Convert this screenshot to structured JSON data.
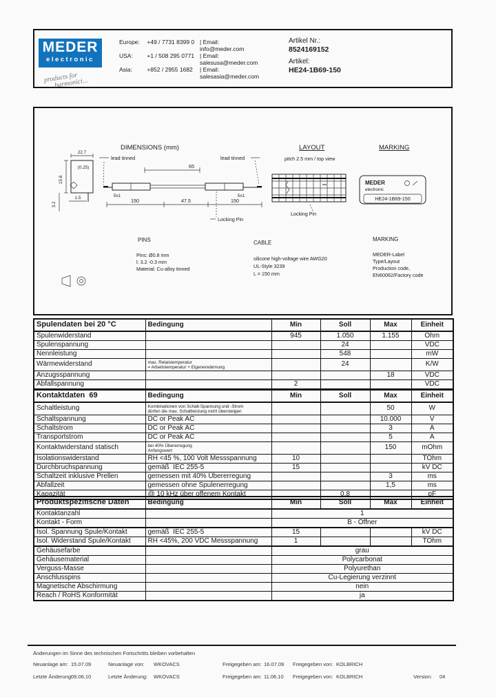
{
  "header": {
    "logo": {
      "line1": "MEDER",
      "line2": "electronic",
      "script1": "products for",
      "script2": "harmonici..."
    },
    "contacts": [
      {
        "region": "Europe:",
        "phone": "+49 / 7731 8399 0",
        "email": "| Email: info@meder.com"
      },
      {
        "region": "USA:",
        "phone": "+1 / 508 295 0771",
        "email": "| Email: salesusa@meder.com"
      },
      {
        "region": "Asia:",
        "phone": "+852 / 2955 1682",
        "email": "| Email: salesasia@meder.com"
      }
    ],
    "article_no_label": "Artikel Nr.:",
    "article_no": "8524169152",
    "article_label": "Artikel:",
    "article": "HE24-1B69-150"
  },
  "drawing": {
    "dims_title": "DIMENSIONS (mm)",
    "layout_title": "LAYOUT",
    "layout_sub": "pitch 2.5 mm / top view",
    "marking_title": "MARKING",
    "end_view": {
      "w": "22.7",
      "w2": "(0.25)",
      "h": "15.8",
      "pin": "3.2",
      "off": "1.5"
    },
    "side": {
      "lead_tinned_left": "lead tinned",
      "lead_tinned_right": "lead tinned",
      "len65": "65",
      "tol_left": "5±1",
      "tol_right": "5±1",
      "cable_left": "150",
      "body_mid": "47.5",
      "cable_right": "150",
      "locking_pin": "Locking Pin"
    },
    "layout_caption": "Locking Pin",
    "label": {
      "brand_top": "MEDER",
      "brand_bottom": "electronic",
      "part": "HE24-1B69-150"
    },
    "pins": {
      "title": "PINS",
      "l1": "Pins: Ø0.8 mm",
      "l2": "l: 3.2 -0.3 mm",
      "l3": "Material: Cu-alloy tinned"
    },
    "cable": {
      "title": "CABLE",
      "l1": "silicone high-voltage wire AWG20",
      "l2": "UL-Style 3239",
      "l3": "L = 150 mm"
    },
    "marking": {
      "title": "MARKING",
      "l1": "MEDER-Label",
      "l2": "Type/Layout",
      "l3": "Production code,",
      "l4": "EN60062/Factory code"
    }
  },
  "table_headers": {
    "cond": "Bedingung",
    "min": "Min",
    "soll": "Soll",
    "max": "Max",
    "unit": "Einheit"
  },
  "tables": [
    {
      "title": "Spulendaten bei 20 °C",
      "rows": [
        {
          "label": "Spulenwiderstand",
          "cond": "",
          "min": "945",
          "soll": "1.050",
          "max": "1.155",
          "unit": "Ohm"
        },
        {
          "label": "Spulenspannung",
          "cond": "",
          "min": "",
          "soll": "24",
          "max": "",
          "unit": "VDC"
        },
        {
          "label": "Nennleistung",
          "cond": "",
          "min": "",
          "soll": "548",
          "max": "",
          "unit": "mW"
        },
        {
          "label": "Wärmewiderstand",
          "cond_lines": [
            "max. Relaistemperatur",
            "= Arbeitstemperatur + Eigenerwärmung"
          ],
          "min": "",
          "soll": "24",
          "max": "",
          "unit": "K/W"
        },
        {
          "label": "Anzugsspannung",
          "cond": "",
          "min": "",
          "soll": "",
          "max": "18",
          "unit": "VDC"
        },
        {
          "label": "Abfallspannung",
          "cond": "",
          "min": "2",
          "soll": "",
          "max": "",
          "unit": "VDC"
        }
      ]
    },
    {
      "title": "Kontaktdaten  69",
      "rows": [
        {
          "label": "Schaltleistung",
          "cond_lines": [
            "Kombinationen von Schalt-Spannung und -Strom",
            "dürfen die max. Schaltleistung nicht übersteigen"
          ],
          "min": "",
          "soll": "",
          "max": "50",
          "unit": "W"
        },
        {
          "label": "Schaltspannung",
          "cond": "DC or Peak AC",
          "min": "",
          "soll": "",
          "max": "10.000",
          "unit": "V"
        },
        {
          "label": "Schaltstrom",
          "cond": "DC or Peak AC",
          "min": "",
          "soll": "",
          "max": "3",
          "unit": "A"
        },
        {
          "label": "Transportstrom",
          "cond": "DC or Peak AC",
          "min": "",
          "soll": "",
          "max": "5",
          "unit": "A"
        },
        {
          "label": "Kontaktwiderstand statisch",
          "cond_lines": [
            "bei 40% Übererregung",
            "Anfangswert"
          ],
          "min": "",
          "soll": "",
          "max": "150",
          "unit": "mOhm"
        },
        {
          "label": "Isolationswiderstand",
          "cond": "RH <45 %, 100 Volt Messspannung",
          "min": "10",
          "soll": "",
          "max": "",
          "unit": "TOhm"
        },
        {
          "label": "Durchbruchspannung",
          "cond": "gemäß  IEC 255-5",
          "min": "15",
          "soll": "",
          "max": "",
          "unit": "kV DC"
        },
        {
          "label": "Schaltzeit inklusive Prellen",
          "cond": "gemessen mit 40% Übererregung",
          "min": "",
          "soll": "",
          "max": "3",
          "unit": "ms"
        },
        {
          "label": "Abfallzeit",
          "cond": "gemessen ohne Spulenerregung",
          "min": "",
          "soll": "",
          "max": "1,5",
          "unit": "ms"
        },
        {
          "label": "Kapazität",
          "cond": "@ 10 kHz über offenem Kontakt",
          "min": "",
          "soll": "0,8",
          "max": "",
          "unit": "pF"
        }
      ]
    },
    {
      "title": "Produktspezifische Daten",
      "rows": [
        {
          "label": "Kontaktanzahl",
          "cond": "",
          "span": "1"
        },
        {
          "label": "Kontakt - Form",
          "cond": "",
          "span": "B - Öffner",
          "thick": true
        },
        {
          "label": "Isol. Spannung Spule/Kontakt",
          "cond": "gemäß  IEC 255-5",
          "min": "15",
          "soll": "",
          "max": "",
          "unit": "kV DC"
        },
        {
          "label": "Isol. Widerstand Spule/Kontakt",
          "cond": "RH <45%, 200 VDC Messspannung",
          "min": "1",
          "soll": "",
          "max": "",
          "unit": "TOhm",
          "thick": true
        },
        {
          "label": "Gehäusefarbe",
          "cond": "",
          "span": "grau"
        },
        {
          "label": "Gehäusematerial",
          "cond": "",
          "span": "Polycarbonat"
        },
        {
          "label": "Verguss-Masse",
          "cond": "",
          "span": "Polyurethan"
        },
        {
          "label": "Anschlusspins",
          "cond": "",
          "span": "Cu-Legierung verzinnt"
        },
        {
          "label": "Magnetische Abschirmung",
          "cond": "",
          "span": "nein"
        },
        {
          "label": "Reach / RoHS Konformität",
          "cond": "",
          "span": "ja"
        }
      ]
    }
  ],
  "footer": {
    "notice": "Änderungen im Sinne des technischen Fortschritts bleiben vorbehalten",
    "rows": [
      [
        {
          "label": "Neuanlage am:",
          "value": "15.07.09"
        },
        {
          "label": "Neuanlage von:",
          "value": "WKOVACS"
        },
        {
          "label": "Freigegeben am:",
          "value": "16.07.09"
        },
        {
          "label": "Freigegeben von:",
          "value": "KOLBRICH"
        }
      ],
      [
        {
          "label": "Letzte Änderung:",
          "value": "09.06.10"
        },
        {
          "label": "Letzte Änderung:",
          "value": "WKOVACS"
        },
        {
          "label": "Freigegeben am:",
          "value": "11.06.10"
        },
        {
          "label": "Freigegeben von:",
          "value": "KOLBRICH"
        },
        {
          "label": "Version:",
          "value": "04"
        }
      ]
    ]
  },
  "colors": {
    "logo_blue": "#1273bd",
    "ink": "#1a1a1a"
  }
}
